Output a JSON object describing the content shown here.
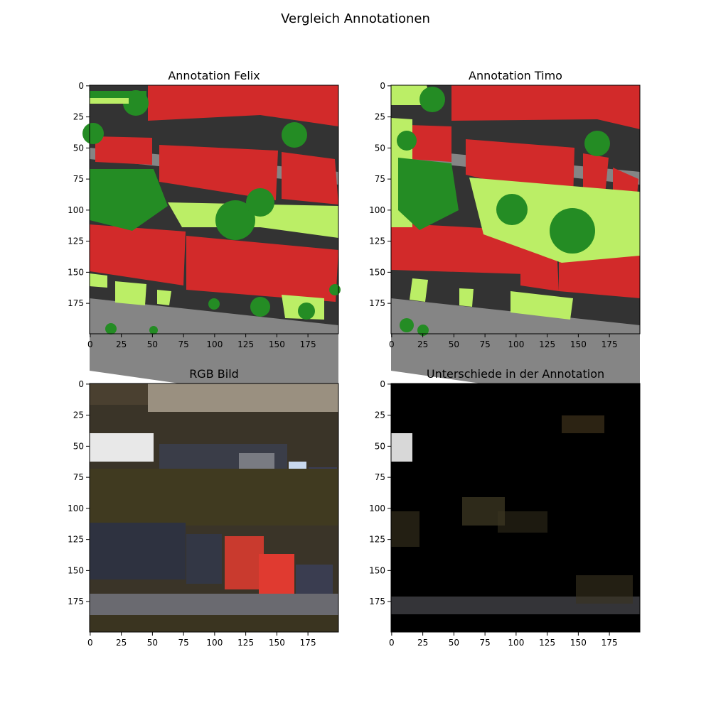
{
  "figure": {
    "title": "Vergleich Annotationen"
  },
  "chart_data": [
    {
      "type": "heatmap",
      "title": "Annotation Felix",
      "content": "segmentation mask",
      "xlim": [
        0,
        199
      ],
      "ylim": [
        199,
        0
      ],
      "xticks": [
        "0",
        "25",
        "50",
        "75",
        "100",
        "125",
        "150",
        "175"
      ],
      "yticks": [
        "0",
        "25",
        "50",
        "75",
        "100",
        "125",
        "150",
        "175"
      ],
      "classes": [
        {
          "color": "#d22a2a"
        },
        {
          "color": "#248c24"
        },
        {
          "color": "#bbee66"
        },
        {
          "color": "#858585"
        },
        {
          "color": "#333333"
        }
      ]
    },
    {
      "type": "heatmap",
      "title": "Annotation Timo",
      "content": "segmentation mask",
      "xlim": [
        0,
        199
      ],
      "ylim": [
        199,
        0
      ],
      "xticks": [
        "0",
        "25",
        "50",
        "75",
        "100",
        "125",
        "150",
        "175"
      ],
      "yticks": [
        "0",
        "25",
        "50",
        "75",
        "100",
        "125",
        "150",
        "175"
      ],
      "classes": [
        {
          "color": "#d22a2a"
        },
        {
          "color": "#248c24"
        },
        {
          "color": "#bbee66"
        },
        {
          "color": "#858585"
        },
        {
          "color": "#333333"
        }
      ]
    },
    {
      "type": "heatmap",
      "title": "RGB Bild",
      "content": "aerial RGB image",
      "xlim": [
        0,
        199
      ],
      "ylim": [
        199,
        0
      ],
      "xticks": [
        "0",
        "25",
        "50",
        "75",
        "100",
        "125",
        "150",
        "175"
      ],
      "yticks": [
        "0",
        "25",
        "50",
        "75",
        "100",
        "125",
        "150",
        "175"
      ]
    },
    {
      "type": "heatmap",
      "title": "Unterschiede in der Annotation",
      "content": "masked RGB image (differences only)",
      "xlim": [
        0,
        199
      ],
      "ylim": [
        199,
        0
      ],
      "xticks": [
        "0",
        "25",
        "50",
        "75",
        "100",
        "125",
        "150",
        "175"
      ],
      "yticks": [
        "0",
        "25",
        "50",
        "75",
        "100",
        "125",
        "150",
        "175"
      ]
    }
  ]
}
